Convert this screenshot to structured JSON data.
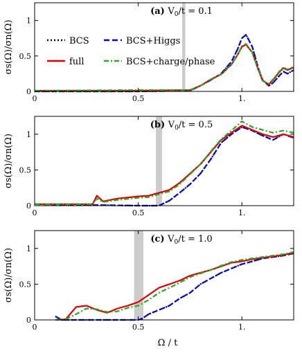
{
  "chart_data": [
    {
      "type": "line",
      "panel_label": "(a)",
      "title": "V",
      "title_sub": "0",
      "title_rest": "/t = 0.1",
      "xlabel": "Ω / t",
      "ylabel": "σs(Ω)/σn(Ω)",
      "xlim": [
        0,
        1.25
      ],
      "ylim": [
        0,
        1.25
      ],
      "xticks": [
        0,
        0.5,
        1.0
      ],
      "xtick_labels": [
        "0",
        "0.5",
        "1."
      ],
      "yticks": [
        0,
        0.5,
        1
      ],
      "ytick_labels": [
        "0",
        "0.5",
        "1"
      ],
      "shaded_band": [
        0.712,
        0.727
      ],
      "legend": {
        "placement": "top-left",
        "entries": [
          {
            "label": "BCS",
            "series": "BCS"
          },
          {
            "label": "BCS+Higgs",
            "series": "BCS+Higgs"
          },
          {
            "label": "full",
            "series": "full"
          },
          {
            "label": "BCS+charge/phase",
            "series": "BCS+charge/phase"
          }
        ]
      },
      "series": [
        {
          "name": "BCS",
          "color": "#000000",
          "dash": "dotted",
          "x": [
            0.0,
            0.5,
            0.75,
            0.8,
            0.85,
            0.9,
            0.95,
            0.98,
            1.0,
            1.02,
            1.05,
            1.08,
            1.1,
            1.13,
            1.15,
            1.18,
            1.2,
            1.22,
            1.25
          ],
          "y": [
            0.0,
            0.0,
            0.01,
            0.08,
            0.16,
            0.25,
            0.42,
            0.6,
            0.75,
            0.8,
            0.63,
            0.32,
            0.16,
            0.08,
            0.12,
            0.22,
            0.28,
            0.25,
            0.3
          ]
        },
        {
          "name": "BCS+Higgs",
          "color": "#0000dd",
          "dash": "dashed",
          "x": [
            0.0,
            0.5,
            0.75,
            0.8,
            0.85,
            0.9,
            0.95,
            0.98,
            1.0,
            1.02,
            1.05,
            1.08,
            1.1,
            1.13,
            1.15,
            1.18,
            1.2,
            1.22,
            1.25
          ],
          "y": [
            0.0,
            0.0,
            0.01,
            0.08,
            0.16,
            0.25,
            0.42,
            0.6,
            0.75,
            0.8,
            0.63,
            0.32,
            0.16,
            0.08,
            0.12,
            0.22,
            0.28,
            0.25,
            0.3
          ]
        },
        {
          "name": "full",
          "color": "#e00000",
          "dash": "solid",
          "x": [
            0.0,
            0.5,
            0.75,
            0.8,
            0.85,
            0.9,
            0.95,
            0.98,
            1.0,
            1.02,
            1.05,
            1.08,
            1.1,
            1.13,
            1.15,
            1.18,
            1.2,
            1.22,
            1.25
          ],
          "y": [
            0.01,
            0.01,
            0.02,
            0.08,
            0.17,
            0.24,
            0.38,
            0.52,
            0.63,
            0.66,
            0.55,
            0.3,
            0.15,
            0.1,
            0.16,
            0.27,
            0.33,
            0.3,
            0.34
          ]
        },
        {
          "name": "BCS+charge/phase",
          "color": "#22aa22",
          "dash": "dashdot",
          "x": [
            0.0,
            0.5,
            0.75,
            0.8,
            0.85,
            0.9,
            0.95,
            0.98,
            1.0,
            1.02,
            1.05,
            1.08,
            1.1,
            1.13,
            1.15,
            1.18,
            1.2,
            1.22,
            1.25
          ],
          "y": [
            0.01,
            0.02,
            0.02,
            0.08,
            0.17,
            0.24,
            0.38,
            0.52,
            0.64,
            0.67,
            0.55,
            0.3,
            0.15,
            0.11,
            0.17,
            0.28,
            0.34,
            0.31,
            0.35
          ]
        }
      ]
    },
    {
      "type": "line",
      "panel_label": "(b)",
      "title": "V",
      "title_sub": "0",
      "title_rest": " = 0.5",
      "title_prefix_sep": "/t",
      "xlabel": "Ω / t",
      "ylabel": "σs(Ω)/σn(Ω)",
      "xlim": [
        0,
        1.25
      ],
      "ylim": [
        0,
        1.25
      ],
      "xticks": [
        0,
        0.5,
        1.0
      ],
      "xtick_labels": [
        "0",
        "0.5",
        "1."
      ],
      "yticks": [
        0,
        0.5,
        1
      ],
      "ytick_labels": [
        "0",
        "0.5",
        "1"
      ],
      "shaded_band": [
        0.585,
        0.615
      ],
      "series": [
        {
          "name": "BCS",
          "color": "#000000",
          "dash": "dotted",
          "x": [
            0.0,
            0.5,
            0.6,
            0.65,
            0.7,
            0.75,
            0.8,
            0.85,
            0.9,
            0.95,
            1.0,
            1.05,
            1.1,
            1.15,
            1.2,
            1.25
          ],
          "y": [
            0.02,
            0.0,
            0.0,
            0.07,
            0.18,
            0.3,
            0.45,
            0.65,
            0.88,
            1.0,
            1.1,
            1.05,
            0.98,
            0.92,
            1.0,
            0.95
          ]
        },
        {
          "name": "BCS+Higgs",
          "color": "#0000dd",
          "dash": "dashed",
          "x": [
            0.0,
            0.5,
            0.6,
            0.65,
            0.7,
            0.75,
            0.8,
            0.85,
            0.9,
            0.95,
            1.0,
            1.05,
            1.1,
            1.15,
            1.2,
            1.25
          ],
          "y": [
            0.02,
            0.0,
            0.0,
            0.07,
            0.18,
            0.3,
            0.45,
            0.65,
            0.88,
            1.0,
            1.1,
            1.05,
            0.98,
            0.92,
            1.0,
            0.95
          ]
        },
        {
          "name": "full",
          "color": "#e00000",
          "dash": "solid",
          "x": [
            0.0,
            0.28,
            0.3,
            0.33,
            0.4,
            0.5,
            0.55,
            0.6,
            0.65,
            0.7,
            0.75,
            0.8,
            0.85,
            0.9,
            0.95,
            1.0,
            1.05,
            1.1,
            1.15,
            1.2,
            1.25
          ],
          "y": [
            0.02,
            0.02,
            0.14,
            0.06,
            0.1,
            0.13,
            0.14,
            0.18,
            0.22,
            0.32,
            0.45,
            0.58,
            0.75,
            0.92,
            1.02,
            1.12,
            1.06,
            1.0,
            0.96,
            1.0,
            0.96
          ]
        },
        {
          "name": "BCS+charge/phase",
          "color": "#22aa22",
          "dash": "dashdot",
          "x": [
            0.0,
            0.28,
            0.3,
            0.33,
            0.4,
            0.5,
            0.55,
            0.6,
            0.65,
            0.7,
            0.75,
            0.8,
            0.85,
            0.9,
            0.95,
            1.0,
            1.05,
            1.1,
            1.15,
            1.2,
            1.25
          ],
          "y": [
            0.02,
            0.02,
            0.1,
            0.05,
            0.08,
            0.11,
            0.12,
            0.16,
            0.2,
            0.3,
            0.44,
            0.58,
            0.76,
            0.93,
            1.05,
            1.18,
            1.1,
            1.06,
            1.02,
            1.05,
            1.02
          ]
        }
      ]
    },
    {
      "type": "line",
      "panel_label": "(c)",
      "title": "V",
      "title_sub": "0",
      "title_rest": "/t = 1.0",
      "xlabel": "Ω / t",
      "ylabel": "σs(Ω)/σn(Ω)",
      "xlim": [
        0,
        1.25
      ],
      "ylim": [
        0,
        1.25
      ],
      "xticks": [
        0,
        0.5,
        1.0
      ],
      "xtick_labels": [
        "0",
        "0.5",
        "1."
      ],
      "yticks": [
        0,
        0.5,
        1
      ],
      "ytick_labels": [
        "0",
        "0.5",
        "1"
      ],
      "shaded_band": [
        0.48,
        0.525
      ],
      "series": [
        {
          "name": "BCS",
          "color": "#000000",
          "dash": "dotted",
          "x": [
            0.1,
            0.13,
            0.2,
            0.3,
            0.4,
            0.5,
            0.52,
            0.55,
            0.6,
            0.65,
            0.7,
            0.75,
            0.8,
            0.85,
            0.9,
            0.95,
            1.0,
            1.05,
            1.1,
            1.15,
            1.2,
            1.25
          ],
          "y": [
            0.05,
            0.0,
            0.0,
            0.0,
            0.0,
            0.0,
            0.02,
            0.08,
            0.14,
            0.2,
            0.3,
            0.38,
            0.5,
            0.58,
            0.66,
            0.72,
            0.78,
            0.82,
            0.86,
            0.88,
            0.9,
            0.93
          ]
        },
        {
          "name": "BCS+Higgs",
          "color": "#0000dd",
          "dash": "dashed",
          "x": [
            0.1,
            0.13,
            0.2,
            0.3,
            0.4,
            0.5,
            0.52,
            0.55,
            0.6,
            0.65,
            0.7,
            0.75,
            0.8,
            0.85,
            0.9,
            0.95,
            1.0,
            1.05,
            1.1,
            1.15,
            1.2,
            1.25
          ],
          "y": [
            0.05,
            0.0,
            0.0,
            0.0,
            0.0,
            0.0,
            0.02,
            0.08,
            0.14,
            0.2,
            0.3,
            0.38,
            0.5,
            0.58,
            0.66,
            0.72,
            0.78,
            0.82,
            0.86,
            0.88,
            0.9,
            0.93
          ]
        },
        {
          "name": "full",
          "color": "#e00000",
          "dash": "solid",
          "x": [
            0.1,
            0.15,
            0.2,
            0.25,
            0.3,
            0.35,
            0.4,
            0.45,
            0.5,
            0.55,
            0.6,
            0.65,
            0.7,
            0.75,
            0.8,
            0.85,
            0.9,
            0.95,
            1.0,
            1.05,
            1.1,
            1.15,
            1.2,
            1.25
          ],
          "y": [
            0.0,
            0.01,
            0.18,
            0.2,
            0.14,
            0.1,
            0.16,
            0.2,
            0.25,
            0.35,
            0.45,
            0.5,
            0.55,
            0.62,
            0.66,
            0.7,
            0.75,
            0.8,
            0.82,
            0.85,
            0.87,
            0.89,
            0.91,
            0.94
          ]
        },
        {
          "name": "BCS+charge/phase",
          "color": "#22aa22",
          "dash": "dashdot",
          "x": [
            0.1,
            0.15,
            0.2,
            0.25,
            0.3,
            0.35,
            0.4,
            0.45,
            0.5,
            0.55,
            0.6,
            0.65,
            0.7,
            0.75,
            0.8,
            0.85,
            0.9,
            0.95,
            1.0,
            1.05,
            1.1,
            1.15,
            1.2,
            1.25
          ],
          "y": [
            0.0,
            0.01,
            0.08,
            0.16,
            0.15,
            0.11,
            0.12,
            0.17,
            0.2,
            0.28,
            0.38,
            0.45,
            0.52,
            0.6,
            0.65,
            0.7,
            0.76,
            0.81,
            0.84,
            0.86,
            0.88,
            0.9,
            0.92,
            0.95
          ]
        }
      ]
    }
  ],
  "shared_xlabel": "Ω / t"
}
